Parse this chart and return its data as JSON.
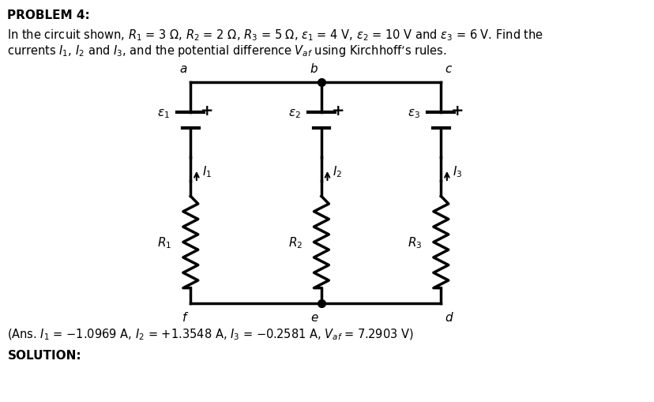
{
  "title": "PROBLEM 4:",
  "problem_text_line1": "In the circuit shown, $R_1$ = 3 Ω, $R_2$ = 2 Ω, $R_3$ = 5 Ω, $\\varepsilon_1$ = 4 V, $\\varepsilon_2$ = 10 V and $\\varepsilon_3$ = 6 V. Find the",
  "problem_text_line2": "currents $I_1$, $I_2$ and $I_3$, and the potential difference $V_{af}$ using Kirchhoff’s rules.",
  "ans_text": "(Ans. $I_1$ = −1.0969 A, $I_2$ = +1.3548 A, $I_3$ = −0.2581 A, $V_{af}$ = 7.2903 V)",
  "solution_text": "SOLUTION:",
  "node_labels": [
    "a",
    "b",
    "c",
    "f",
    "e",
    "d"
  ],
  "resistor_labels": [
    "$R_1$",
    "$R_2$",
    "$R_3$"
  ],
  "emf_labels": [
    "$\\varepsilon_1$",
    "$\\varepsilon_2$",
    "$\\varepsilon_3$"
  ],
  "current_labels": [
    "$I_1$",
    "$I_2$",
    "$I_3$"
  ],
  "bg_color": "#ffffff",
  "line_color": "#000000",
  "text_color": "#000000",
  "fontsize_title": 11,
  "fontsize_body": 11,
  "fontsize_circuit": 11
}
